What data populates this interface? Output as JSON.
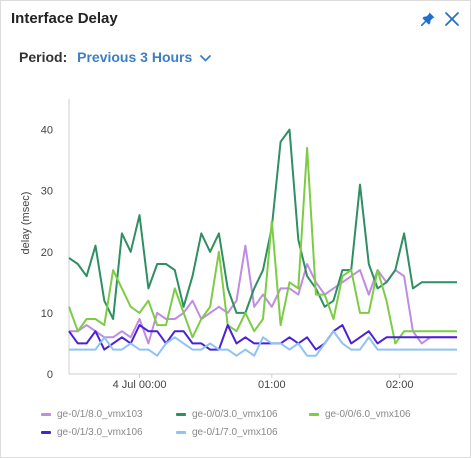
{
  "header": {
    "title": "Interface Delay"
  },
  "period": {
    "label": "Period:",
    "value": "Previous 3 Hours"
  },
  "icons": {
    "pin": "pin-icon",
    "close": "close-icon",
    "dropdown": "chevron-down-icon"
  },
  "colors": {
    "accent": "#3b7fc4",
    "series_purple": "#c08be3",
    "series_darkgreen": "#2f8f62",
    "series_lightgreen": "#7dcc45",
    "series_indigo": "#4a22d6",
    "series_lightblue": "#8fc3f4"
  },
  "chart_data": {
    "type": "line",
    "title": "",
    "xlabel": "",
    "ylabel": "delay (msec)",
    "ylim": [
      0,
      45
    ],
    "yticks": [
      0,
      10,
      20,
      30,
      40
    ],
    "xticks": [
      {
        "t": 8,
        "label": "4 Jul 00:00"
      },
      {
        "t": 23,
        "label": "01:00"
      },
      {
        "t": 37.5,
        "label": "02:00"
      }
    ],
    "x_domain": [
      0,
      44
    ],
    "x": [
      0,
      1,
      2,
      3,
      4,
      5,
      6,
      7,
      8,
      9,
      10,
      11,
      12,
      13,
      14,
      15,
      16,
      17,
      18,
      19,
      20,
      21,
      22,
      23,
      24,
      25,
      26,
      27,
      28,
      29,
      30,
      31,
      32,
      33,
      34,
      35,
      36,
      37,
      38,
      39,
      40,
      41,
      42,
      43,
      44
    ],
    "grid": false,
    "legend_position": "bottom",
    "series": [
      {
        "name": "ge-0/1/8.0_vmx103",
        "color": "#c08be3",
        "values": [
          7,
          7,
          8,
          7,
          6,
          6,
          7,
          6,
          9,
          5,
          10,
          9,
          9,
          10,
          12,
          9,
          10,
          11,
          10,
          12,
          21,
          11,
          13,
          11,
          14,
          14,
          13,
          18,
          15,
          13,
          14,
          15,
          16,
          17,
          13,
          17,
          15,
          17,
          16,
          7,
          5,
          6,
          6,
          6,
          6
        ]
      },
      {
        "name": "ge-0/0/3.0_vmx106",
        "color": "#2f8f62",
        "values": [
          19,
          18,
          16,
          21,
          12,
          9,
          23,
          20,
          26,
          14,
          18,
          18,
          17,
          11,
          16,
          23,
          20,
          23,
          14,
          10,
          10,
          14,
          17,
          24,
          38,
          40,
          22,
          16,
          14,
          11,
          12,
          17,
          17,
          31,
          18,
          14,
          15,
          17,
          23,
          14,
          15,
          15,
          15,
          15,
          15
        ]
      },
      {
        "name": "ge-0/0/6.0_vmx106",
        "color": "#7dcc45",
        "values": [
          11,
          7,
          9,
          9,
          8,
          17,
          14,
          11,
          10,
          12,
          8,
          8,
          14,
          10,
          6,
          9,
          11,
          20,
          8,
          7,
          10,
          7,
          9,
          25,
          8,
          15,
          14,
          37,
          13,
          13,
          9,
          16,
          17,
          10,
          10,
          17,
          12,
          5,
          7,
          7,
          7,
          7,
          7,
          7,
          7
        ]
      },
      {
        "name": "ge-0/1/3.0_vmx106",
        "color": "#4a22d6",
        "values": [
          7,
          5,
          5,
          7,
          4,
          5,
          6,
          5,
          8,
          7,
          7,
          5,
          7,
          7,
          5,
          5,
          4,
          4,
          8,
          5,
          6,
          5,
          5,
          5,
          5,
          6,
          5,
          6,
          4,
          5,
          7,
          8,
          5,
          6,
          7,
          5,
          6,
          6,
          6,
          6,
          6,
          6,
          6,
          6,
          6
        ]
      },
      {
        "name": "ge-0/1/7.0_vmx106",
        "color": "#8fc3f4",
        "values": [
          4,
          4,
          4,
          4,
          6,
          4,
          4,
          5,
          4,
          4,
          3,
          5,
          6,
          5,
          4,
          4,
          5,
          4,
          4,
          3,
          4,
          3,
          6,
          5,
          5,
          4,
          5,
          3,
          3,
          5,
          7,
          5,
          4,
          4,
          6,
          4,
          4,
          4,
          4,
          4,
          4,
          4,
          4,
          4,
          4
        ]
      }
    ]
  },
  "legend": [
    {
      "name": "ge-0/1/8.0_vmx103",
      "color": "#c08be3"
    },
    {
      "name": "ge-0/0/3.0_vmx106",
      "color": "#2f8f62"
    },
    {
      "name": "ge-0/0/6.0_vmx106",
      "color": "#7dcc45"
    },
    {
      "name": "ge-0/1/3.0_vmx106",
      "color": "#4a22d6"
    },
    {
      "name": "ge-0/1/7.0_vmx106",
      "color": "#8fc3f4"
    }
  ]
}
